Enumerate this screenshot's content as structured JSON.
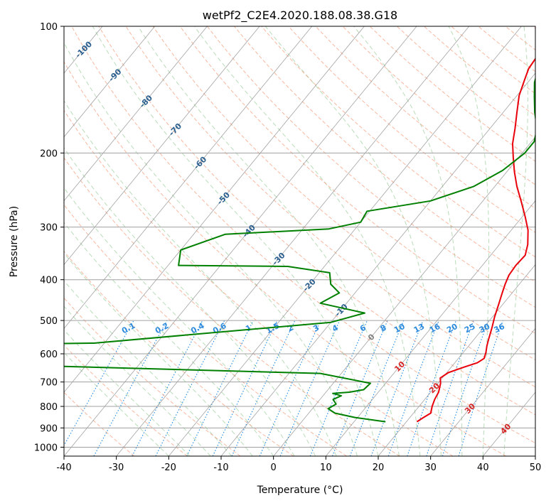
{
  "chart_data": {
    "type": "skew-t",
    "title": "wetPf2_C2E4.2020.188.08.38.G18",
    "xlabel": "Temperature (°C)",
    "ylabel": "Pressure (hPa)",
    "xlim": [
      -40,
      50
    ],
    "ylim": [
      1050,
      100
    ],
    "y_scale": "log",
    "grid": true,
    "x_ticks": [
      "-40",
      "-30",
      "-20",
      "-10",
      "0",
      "10",
      "20",
      "30",
      "40",
      "50"
    ],
    "y_ticks": [
      "100",
      "200",
      "300",
      "400",
      "500",
      "600",
      "700",
      "800",
      "900",
      "1000"
    ],
    "dry_adiabat_labels": [
      "-100",
      "-90",
      "-80",
      "-70",
      "-60",
      "-50",
      "-40",
      "-30",
      "-20",
      "-10",
      "0",
      "10",
      "20",
      "30",
      "40"
    ],
    "mixing_ratio_labels": [
      "0.1",
      "0.2",
      "0.4",
      "0.6",
      "1",
      "1.5",
      "2",
      "3",
      "4",
      "6",
      "8",
      "10",
      "13",
      "16",
      "20",
      "25",
      "30",
      "36"
    ],
    "series": [
      {
        "key": "temperature",
        "color": "#e8000b",
        "points": [
          [
            22,
            870
          ],
          [
            22.6,
            850
          ],
          [
            23.3,
            830
          ],
          [
            22.5,
            800
          ],
          [
            21.9,
            770
          ],
          [
            21.5,
            740
          ],
          [
            20.5,
            705
          ],
          [
            19.6,
            685
          ],
          [
            20.3,
            665
          ],
          [
            22.5,
            645
          ],
          [
            24.3,
            630
          ],
          [
            24.9,
            615
          ],
          [
            24.3,
            595
          ],
          [
            23.5,
            575
          ],
          [
            22.8,
            555
          ],
          [
            21.6,
            520
          ],
          [
            20.4,
            490
          ],
          [
            19.3,
            460
          ],
          [
            18.1,
            430
          ],
          [
            17.3,
            410
          ],
          [
            16.6,
            390
          ],
          [
            16.4,
            370
          ],
          [
            16.6,
            350
          ],
          [
            15.4,
            330
          ],
          [
            13.2,
            305
          ],
          [
            10.5,
            283
          ],
          [
            7.3,
            260
          ],
          [
            4.2,
            240
          ],
          [
            1.5,
            222
          ],
          [
            -1,
            205
          ],
          [
            -3.3,
            190
          ],
          [
            -5.2,
            175
          ],
          [
            -7.4,
            160
          ],
          [
            -9.6,
            146
          ],
          [
            -10.9,
            135
          ],
          [
            -12,
            126
          ],
          [
            -12.3,
            118
          ],
          [
            -12.6,
            110
          ],
          [
            -12.9,
            104
          ],
          [
            -13.2,
            100
          ]
        ]
      },
      {
        "key": "dewpoint",
        "color": "#008000",
        "points": [
          [
            16,
            870
          ],
          [
            9.5,
            850
          ],
          [
            5,
            830
          ],
          [
            3,
            810
          ],
          [
            3.8,
            790
          ],
          [
            2.5,
            770
          ],
          [
            3.5,
            755
          ],
          [
            1.5,
            745
          ],
          [
            4.5,
            740
          ],
          [
            6.8,
            730
          ],
          [
            7.1,
            705
          ],
          [
            -4,
            668
          ],
          [
            -60,
            640
          ],
          [
            -63,
            568
          ],
          [
            -52,
            566
          ],
          [
            -10,
            505
          ],
          [
            -5,
            480
          ],
          [
            -15,
            455
          ],
          [
            -13,
            430
          ],
          [
            -16,
            410
          ],
          [
            -18,
            385
          ],
          [
            -27,
            372
          ],
          [
            -48,
            370
          ],
          [
            -50,
            340
          ],
          [
            -44,
            312
          ],
          [
            -25,
            303
          ],
          [
            -20,
            292
          ],
          [
            -20.5,
            275
          ],
          [
            -10,
            260
          ],
          [
            -4,
            240
          ],
          [
            -1,
            220
          ],
          [
            0.5,
            200
          ],
          [
            0.5,
            188
          ],
          [
            -1,
            175
          ],
          [
            -4,
            160
          ],
          [
            -6.5,
            147
          ],
          [
            -8.7,
            136
          ],
          [
            -10.2,
            126
          ],
          [
            -11.2,
            118
          ],
          [
            -11.8,
            110
          ],
          [
            -12.3,
            104
          ],
          [
            -12.6,
            100
          ]
        ]
      }
    ]
  }
}
